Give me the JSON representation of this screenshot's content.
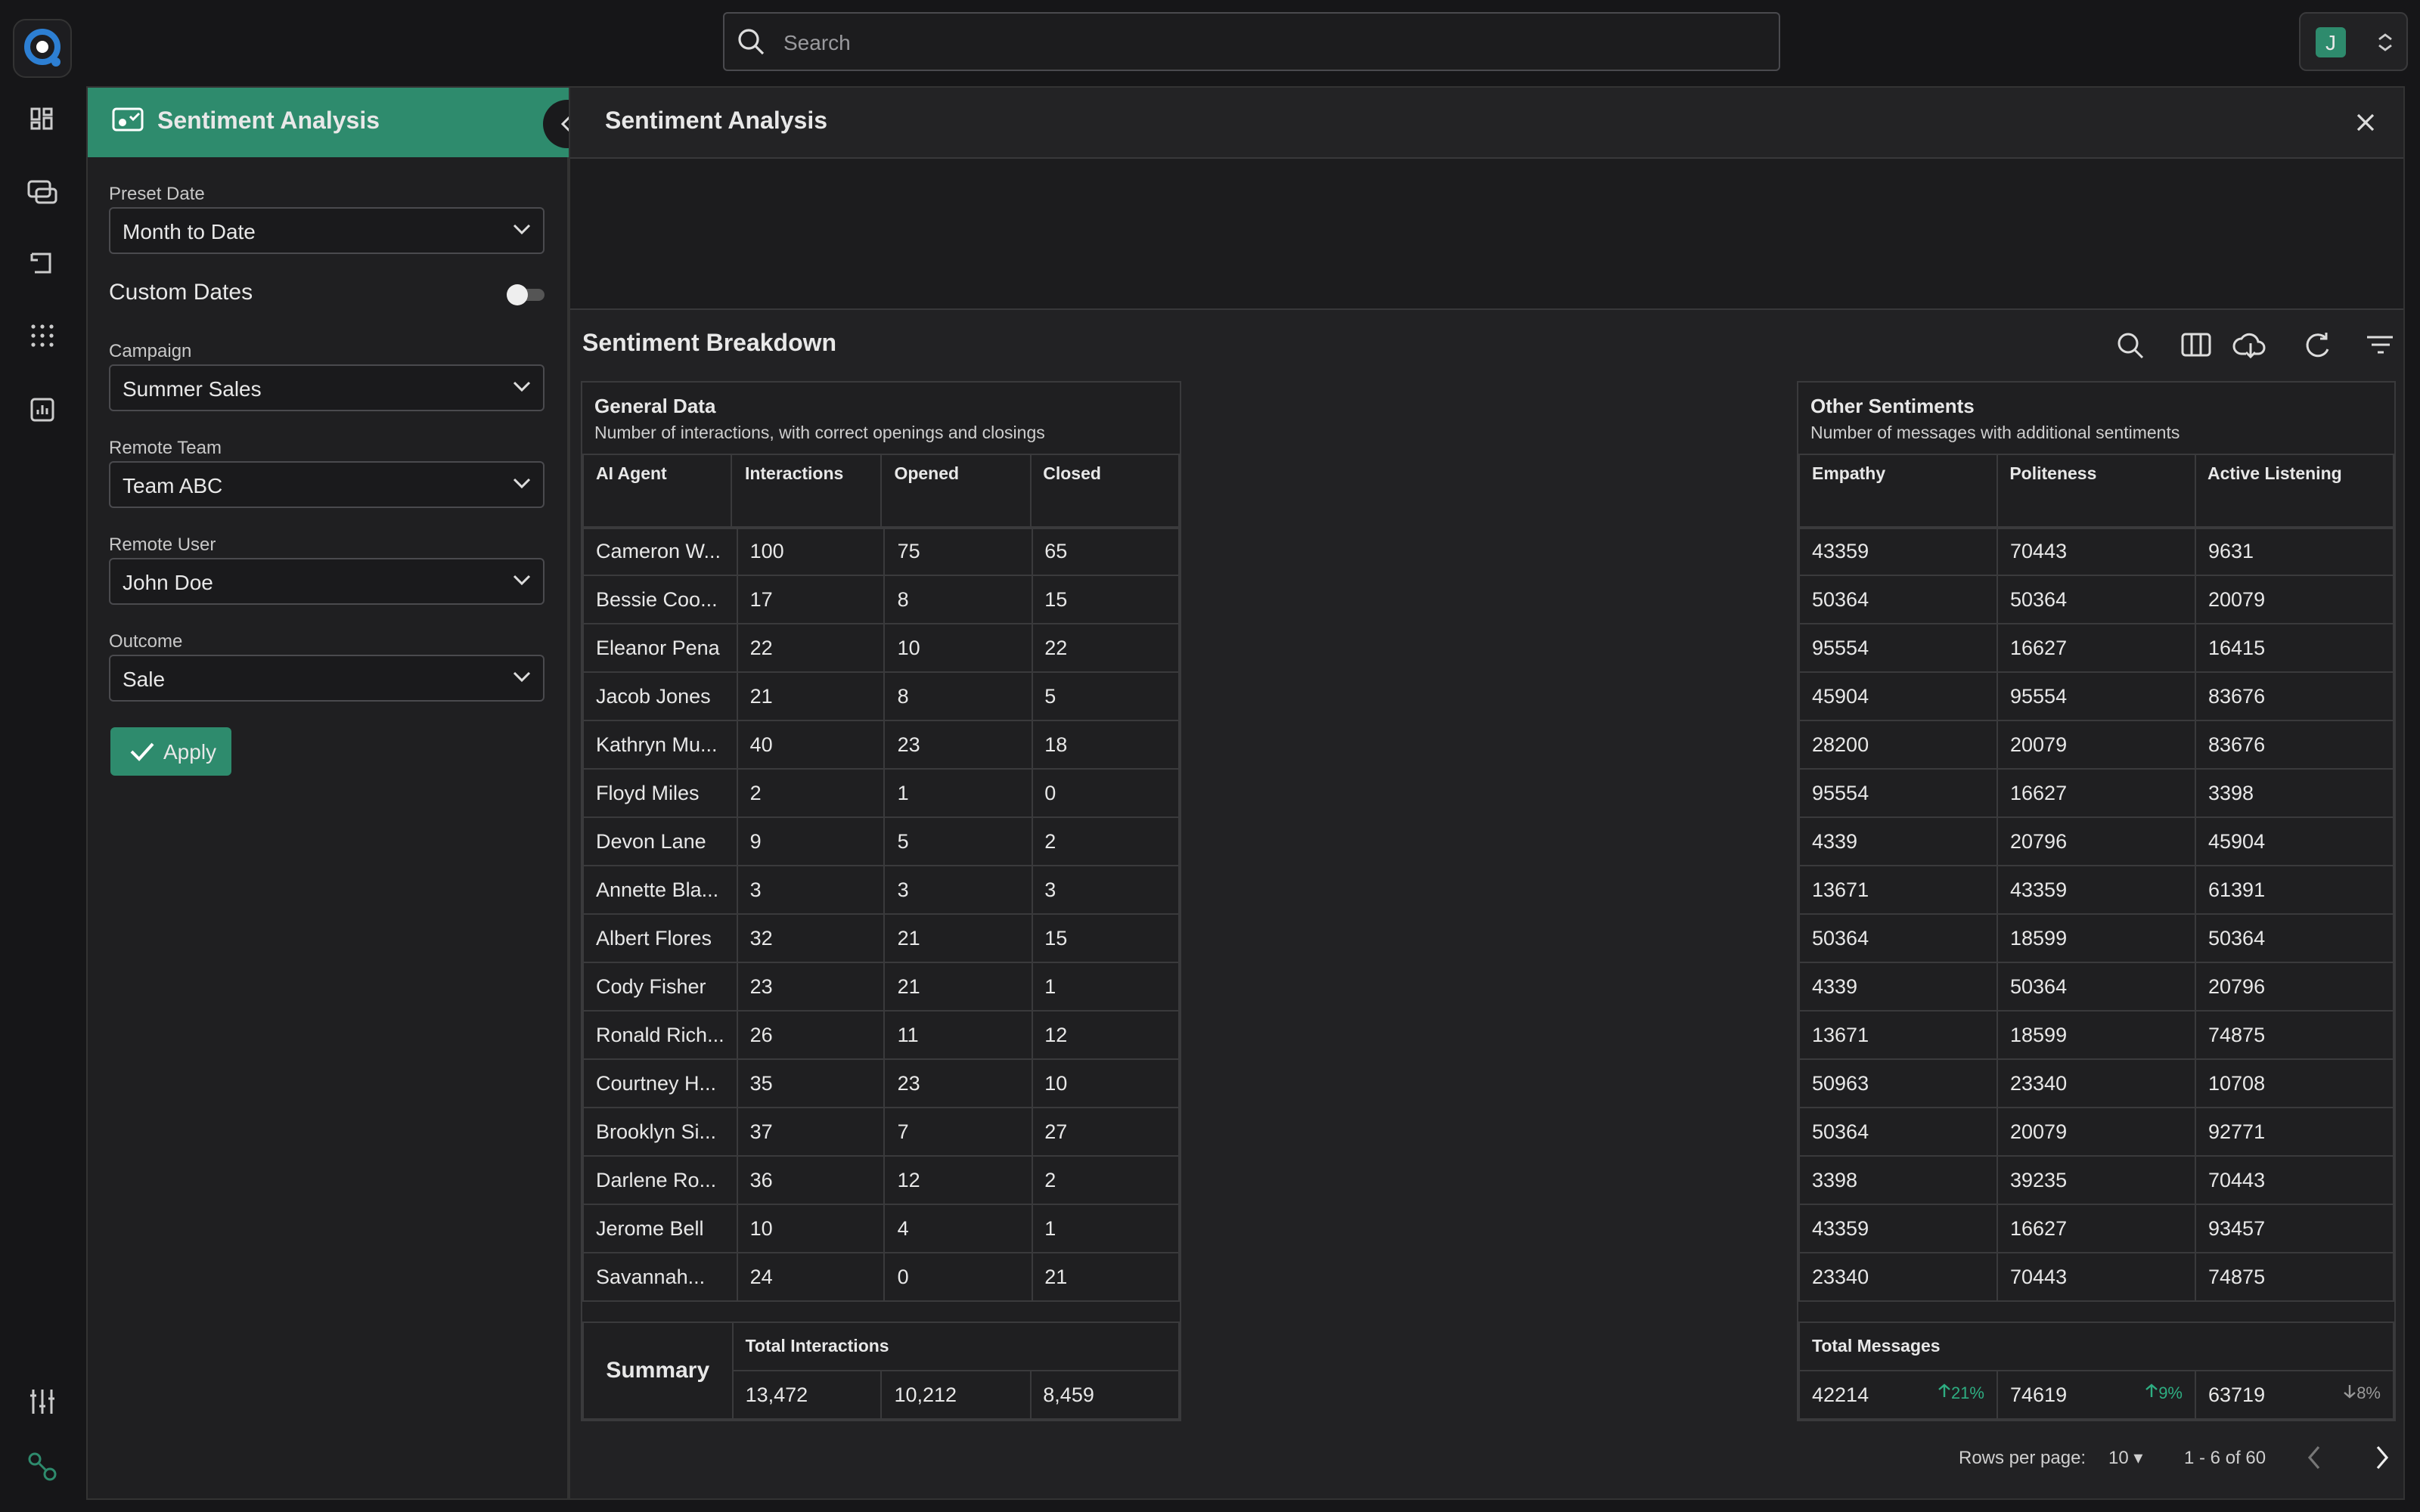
{
  "header": {
    "search_placeholder": "Search",
    "user_initial": "J"
  },
  "sidebar": {
    "title": "Sentiment Analysis",
    "preset_date": {
      "label": "Preset Date",
      "value": "Month to Date"
    },
    "custom_dates": "Custom Dates",
    "campaign": {
      "label": "Campaign",
      "value": "Summer Sales"
    },
    "remote_team": {
      "label": "Remote Team",
      "value": "Team ABC"
    },
    "remote_user": {
      "label": "Remote User",
      "value": "John Doe"
    },
    "outcome": {
      "label": "Outcome",
      "value": "Sale"
    },
    "apply": "Apply"
  },
  "main": {
    "title": "Sentiment Analysis",
    "breakdown_title": "Sentiment Breakdown",
    "general": {
      "title": "General Data",
      "subtitle": "Number of interactions, with correct openings and closings",
      "columns": [
        "AI Agent",
        "Interactions",
        "Opened",
        "Closed"
      ],
      "rows": [
        [
          "Cameron W...",
          "100",
          "75",
          "65"
        ],
        [
          "Bessie Coo...",
          "17",
          "8",
          "15"
        ],
        [
          "Eleanor Pena",
          "22",
          "10",
          "22"
        ],
        [
          "Jacob Jones",
          "21",
          "8",
          "5"
        ],
        [
          "Kathryn Mu...",
          "40",
          "23",
          "18"
        ],
        [
          "Floyd Miles",
          "2",
          "1",
          "0"
        ],
        [
          "Devon Lane",
          "9",
          "5",
          "2"
        ],
        [
          "Annette Bla...",
          "3",
          "3",
          "3"
        ],
        [
          "Albert Flores",
          "32",
          "21",
          "15"
        ],
        [
          "Cody Fisher",
          "23",
          "21",
          "1"
        ],
        [
          "Ronald Rich...",
          "26",
          "11",
          "12"
        ],
        [
          "Courtney H...",
          "35",
          "23",
          "10"
        ],
        [
          "Brooklyn Si...",
          "37",
          "7",
          "27"
        ],
        [
          "Darlene Ro...",
          "36",
          "12",
          "2"
        ],
        [
          "Jerome Bell",
          "10",
          "4",
          "1"
        ],
        [
          "Savannah...",
          "24",
          "0",
          "21"
        ]
      ],
      "summary_label": "Summary",
      "summary_heading": "Total Interactions",
      "summary": [
        "13,472",
        "10,212",
        "8,459"
      ]
    },
    "other": {
      "title": "Other Sentiments",
      "subtitle": "Number of messages with additional sentiments",
      "columns": [
        "Empathy",
        "Politeness",
        "Active Listening"
      ],
      "rows": [
        [
          "43359",
          "70443",
          "9631"
        ],
        [
          "50364",
          "50364",
          "20079"
        ],
        [
          "95554",
          "16627",
          "16415"
        ],
        [
          "45904",
          "95554",
          "83676"
        ],
        [
          "28200",
          "20079",
          "83676"
        ],
        [
          "95554",
          "16627",
          "3398"
        ],
        [
          "4339",
          "20796",
          "45904"
        ],
        [
          "13671",
          "43359",
          "61391"
        ],
        [
          "50364",
          "18599",
          "50364"
        ],
        [
          "4339",
          "50364",
          "20796"
        ],
        [
          "13671",
          "18599",
          "74875"
        ],
        [
          "50963",
          "23340",
          "10708"
        ],
        [
          "50364",
          "20079",
          "92771"
        ],
        [
          "3398",
          "39235",
          "70443"
        ],
        [
          "43359",
          "16627",
          "93457"
        ],
        [
          "23340",
          "70443",
          "74875"
        ]
      ],
      "summary_heading": "Total Messages",
      "summary": [
        {
          "value": "42214",
          "change": "21%"
        },
        {
          "value": "74619",
          "change": "9%"
        },
        {
          "value": "63719",
          "change": "8%"
        }
      ]
    },
    "pagination": {
      "rows_per_page_label": "Rows per page:",
      "rows_per_page": "10",
      "range": "1 - 6 of 60"
    }
  }
}
